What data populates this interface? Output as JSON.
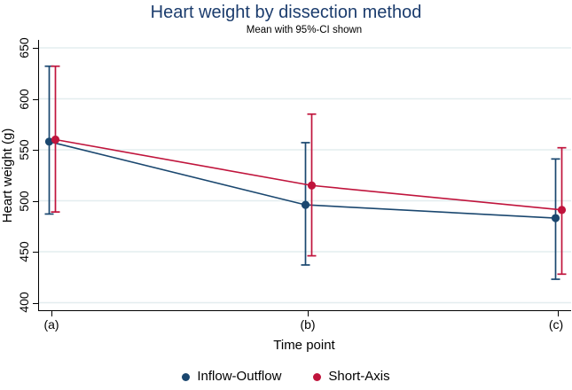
{
  "title": "Heart weight by dissection method",
  "subtitle": "Mean with 95%-CI shown",
  "colors": {
    "title": "#1b3c6d",
    "navy": "#1a476f",
    "crimson": "#c0143c",
    "grid": "#e3edef",
    "axis": "#000000",
    "background": "#ffffff"
  },
  "chart_data": {
    "type": "line",
    "title": "Heart weight by dissection method",
    "subtitle": "Mean with 95%-CI shown",
    "xlabel": "Time point",
    "ylabel": "Heart weight (g)",
    "categories": [
      "(a)",
      "(b)",
      "(c)"
    ],
    "ylim": [
      400,
      650
    ],
    "yticks": [
      400,
      450,
      500,
      550,
      600,
      650
    ],
    "grid": true,
    "error_bars": "95% CI",
    "legend_position": "bottom",
    "series": [
      {
        "name": "Inflow-Outflow",
        "color": "#1a476f",
        "means": [
          558,
          496,
          483
        ],
        "ci_low": [
          487,
          437,
          423
        ],
        "ci_high": [
          632,
          557,
          541
        ]
      },
      {
        "name": "Short-Axis",
        "color": "#c0143c",
        "means": [
          560,
          515,
          491
        ],
        "ci_low": [
          489,
          446,
          428
        ],
        "ci_high": [
          632,
          585,
          552
        ]
      }
    ]
  },
  "legend": {
    "items": [
      {
        "label": "Inflow-Outflow",
        "color": "#1a476f"
      },
      {
        "label": "Short-Axis",
        "color": "#c0143c"
      }
    ]
  }
}
